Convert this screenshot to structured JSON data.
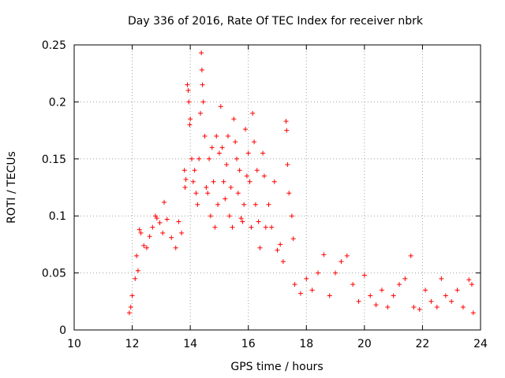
{
  "chart_data": {
    "type": "scatter",
    "title": "Day 336 of 2016, Rate Of TEC Index for receiver nbrk",
    "xlabel": "GPS time / hours",
    "ylabel": "ROTI / TECUs",
    "xlim": [
      10,
      24
    ],
    "ylim": [
      0,
      0.25
    ],
    "xticks": [
      "10",
      "12",
      "14",
      "16",
      "18",
      "20",
      "22",
      "24"
    ],
    "yticks": [
      "0",
      "0.05",
      "0.1",
      "0.15",
      "0.2",
      "0.25"
    ],
    "grid": true,
    "marker": "plus",
    "color": "#ff0000",
    "series": [
      {
        "name": "ROTI",
        "points": [
          [
            11.9,
            0.015
          ],
          [
            11.95,
            0.02
          ],
          [
            12.0,
            0.03
          ],
          [
            12.1,
            0.045
          ],
          [
            12.15,
            0.065
          ],
          [
            12.2,
            0.052
          ],
          [
            12.25,
            0.088
          ],
          [
            12.3,
            0.085
          ],
          [
            12.4,
            0.074
          ],
          [
            12.5,
            0.072
          ],
          [
            12.6,
            0.082
          ],
          [
            12.7,
            0.09
          ],
          [
            12.8,
            0.1
          ],
          [
            12.85,
            0.098
          ],
          [
            12.95,
            0.094
          ],
          [
            13.05,
            0.085
          ],
          [
            13.1,
            0.112
          ],
          [
            13.2,
            0.097
          ],
          [
            13.35,
            0.081
          ],
          [
            13.5,
            0.072
          ],
          [
            13.6,
            0.095
          ],
          [
            13.7,
            0.085
          ],
          [
            13.8,
            0.14
          ],
          [
            13.82,
            0.125
          ],
          [
            13.85,
            0.132
          ],
          [
            13.9,
            0.215
          ],
          [
            13.93,
            0.21
          ],
          [
            13.95,
            0.2
          ],
          [
            13.98,
            0.18
          ],
          [
            14.0,
            0.185
          ],
          [
            14.05,
            0.15
          ],
          [
            14.1,
            0.13
          ],
          [
            14.15,
            0.14
          ],
          [
            14.2,
            0.12
          ],
          [
            14.25,
            0.11
          ],
          [
            14.3,
            0.15
          ],
          [
            14.35,
            0.19
          ],
          [
            14.38,
            0.243
          ],
          [
            14.4,
            0.228
          ],
          [
            14.42,
            0.215
          ],
          [
            14.45,
            0.2
          ],
          [
            14.5,
            0.17
          ],
          [
            14.55,
            0.125
          ],
          [
            14.6,
            0.12
          ],
          [
            14.65,
            0.15
          ],
          [
            14.7,
            0.1
          ],
          [
            14.75,
            0.16
          ],
          [
            14.8,
            0.13
          ],
          [
            14.85,
            0.09
          ],
          [
            14.9,
            0.17
          ],
          [
            14.95,
            0.11
          ],
          [
            15.0,
            0.155
          ],
          [
            15.05,
            0.196
          ],
          [
            15.1,
            0.16
          ],
          [
            15.15,
            0.13
          ],
          [
            15.2,
            0.115
          ],
          [
            15.25,
            0.145
          ],
          [
            15.3,
            0.17
          ],
          [
            15.35,
            0.1
          ],
          [
            15.4,
            0.125
          ],
          [
            15.45,
            0.09
          ],
          [
            15.5,
            0.185
          ],
          [
            15.55,
            0.165
          ],
          [
            15.6,
            0.15
          ],
          [
            15.65,
            0.12
          ],
          [
            15.7,
            0.14
          ],
          [
            15.75,
            0.098
          ],
          [
            15.8,
            0.095
          ],
          [
            15.85,
            0.11
          ],
          [
            15.9,
            0.176
          ],
          [
            15.95,
            0.135
          ],
          [
            16.0,
            0.155
          ],
          [
            16.05,
            0.13
          ],
          [
            16.1,
            0.09
          ],
          [
            16.15,
            0.19
          ],
          [
            16.2,
            0.165
          ],
          [
            16.25,
            0.11
          ],
          [
            16.3,
            0.14
          ],
          [
            16.35,
            0.095
          ],
          [
            16.4,
            0.072
          ],
          [
            16.5,
            0.155
          ],
          [
            16.55,
            0.135
          ],
          [
            16.6,
            0.09
          ],
          [
            16.7,
            0.11
          ],
          [
            16.8,
            0.09
          ],
          [
            16.9,
            0.13
          ],
          [
            17.0,
            0.07
          ],
          [
            17.1,
            0.075
          ],
          [
            17.2,
            0.06
          ],
          [
            17.3,
            0.183
          ],
          [
            17.32,
            0.175
          ],
          [
            17.35,
            0.145
          ],
          [
            17.4,
            0.12
          ],
          [
            17.5,
            0.1
          ],
          [
            17.55,
            0.08
          ],
          [
            17.6,
            0.04
          ],
          [
            17.8,
            0.032
          ],
          [
            18.0,
            0.045
          ],
          [
            18.2,
            0.035
          ],
          [
            18.4,
            0.05
          ],
          [
            18.6,
            0.066
          ],
          [
            18.8,
            0.03
          ],
          [
            19.0,
            0.05
          ],
          [
            19.2,
            0.06
          ],
          [
            19.4,
            0.065
          ],
          [
            19.6,
            0.04
          ],
          [
            19.8,
            0.025
          ],
          [
            20.0,
            0.048
          ],
          [
            20.2,
            0.03
          ],
          [
            20.4,
            0.022
          ],
          [
            20.6,
            0.035
          ],
          [
            20.8,
            0.02
          ],
          [
            21.0,
            0.03
          ],
          [
            21.2,
            0.04
          ],
          [
            21.4,
            0.045
          ],
          [
            21.6,
            0.065
          ],
          [
            21.7,
            0.02
          ],
          [
            21.9,
            0.018
          ],
          [
            22.1,
            0.035
          ],
          [
            22.3,
            0.025
          ],
          [
            22.5,
            0.02
          ],
          [
            22.65,
            0.045
          ],
          [
            22.8,
            0.03
          ],
          [
            23.0,
            0.025
          ],
          [
            23.2,
            0.035
          ],
          [
            23.4,
            0.02
          ],
          [
            23.6,
            0.044
          ],
          [
            23.7,
            0.04
          ],
          [
            23.75,
            0.015
          ]
        ]
      }
    ]
  }
}
